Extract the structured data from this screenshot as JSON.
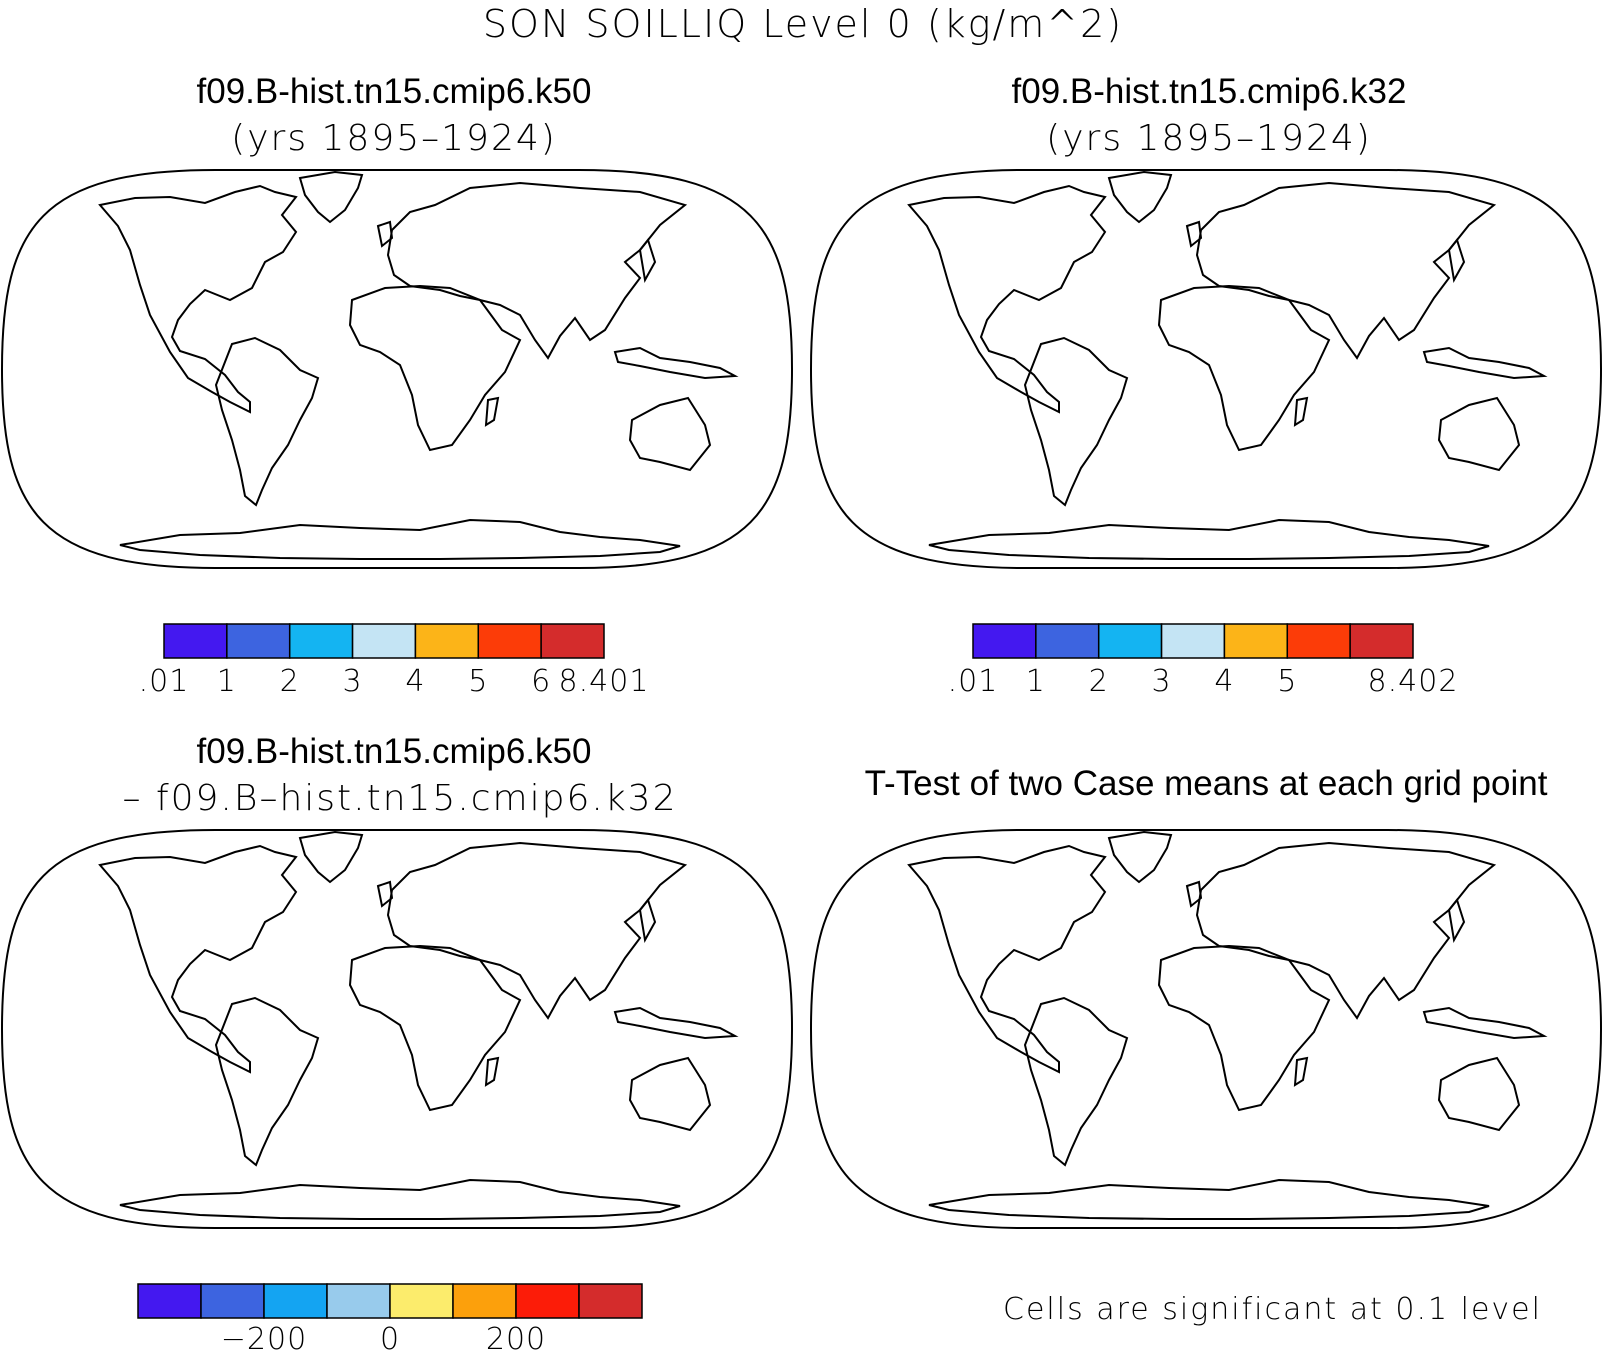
{
  "figure": {
    "title": "SON SOILLIQ Level 0 (kg/m^2)"
  },
  "panels": [
    {
      "id": "case1",
      "title": "f09.B-hist.tn15.cmip6.k50",
      "subtitle": "(yrs 1895–1924)",
      "style": "field"
    },
    {
      "id": "case2",
      "title": "f09.B-hist.tn15.cmip6.k32",
      "subtitle": "(yrs 1895–1924)",
      "style": "field"
    },
    {
      "id": "diff",
      "title": "f09.B-hist.tn15.cmip6.k50",
      "subtitle": "– f09.B–hist.tn15.cmip6.k32",
      "style": "diff"
    },
    {
      "id": "ttest",
      "title": "T-Test of two Case means at each grid point",
      "subtitle": "",
      "style": "ttest",
      "note": "Cells are significant at 0.1 level"
    }
  ],
  "colorbars": [
    {
      "id": "cbar-case1",
      "colors": [
        "#4418f0",
        "#3d64e0",
        "#14b4f2",
        "#c4e4f4",
        "#fcb418",
        "#fc3c08",
        "#d42c2c"
      ],
      "tick_labels": [
        ".01",
        "1",
        "2",
        "3",
        "4",
        "5",
        "6",
        "8.401"
      ]
    },
    {
      "id": "cbar-case2",
      "colors": [
        "#4418f0",
        "#3d64e0",
        "#14b4f2",
        "#c4e4f4",
        "#fcb418",
        "#fc3c08",
        "#d42c2c"
      ],
      "tick_labels": [
        ".01",
        "1",
        "2",
        "3",
        "4",
        "5",
        "",
        "8.402"
      ]
    },
    {
      "id": "cbar-diff",
      "colors": [
        "#4418f0",
        "#3d64e0",
        "#14a4f2",
        "#98cbec",
        "#fcec6c",
        "#fca00c",
        "#fc1c08",
        "#d42c2c"
      ],
      "tick_labels": [
        "",
        "",
        "−200",
        "",
        "0",
        "",
        "200",
        "",
        ""
      ]
    }
  ]
}
